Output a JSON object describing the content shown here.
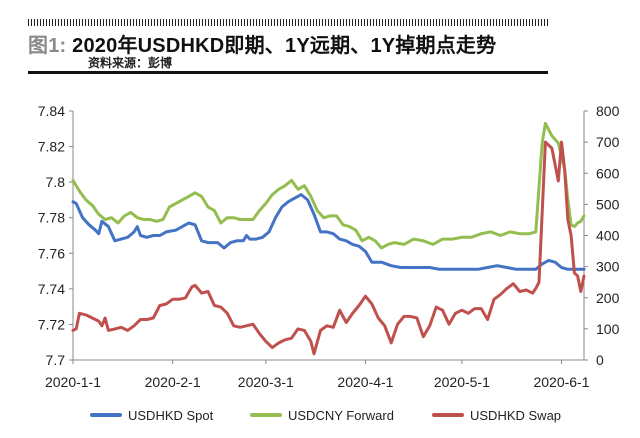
{
  "header": {
    "figure_number": "图1:",
    "title": "2020年USDHKD即期、1Y远期、1Y掉期点走势",
    "source": "资料来源：彭博"
  },
  "colors": {
    "spot": "#4472c4",
    "forward": "#93be4f",
    "swap": "#c0504d",
    "axis": "#888888"
  },
  "legend": [
    {
      "name": "USDHKD Spot"
    },
    {
      "name": "USDCNY Forward"
    },
    {
      "name": "USDHKD Swap"
    }
  ],
  "chart_data": {
    "type": "line",
    "x_ticks": [
      "2020-1-1",
      "2020-2-1",
      "2020-3-1",
      "2020-4-1",
      "2020-5-1",
      "2020-6-1"
    ],
    "x_range": [
      "2020-01-01",
      "2020-06-08"
    ],
    "y_left": {
      "ticks": [
        "7.7",
        "7.72",
        "7.74",
        "7.76",
        "7.78",
        "7.8",
        "7.82",
        "7.84"
      ],
      "range": [
        7.7,
        7.84
      ]
    },
    "y_right": {
      "ticks": [
        "0",
        "100",
        "200",
        "300",
        "400",
        "500",
        "600",
        "700",
        "800"
      ],
      "range": [
        0,
        800
      ]
    },
    "grid": false,
    "legend_position": "bottom",
    "series": [
      {
        "name": "USDHKD Spot",
        "axis": "left",
        "points": [
          [
            "2020-01-01",
            7.789
          ],
          [
            "2020-01-02",
            7.788
          ],
          [
            "2020-01-04",
            7.78
          ],
          [
            "2020-01-06",
            7.776
          ],
          [
            "2020-01-08",
            7.773
          ],
          [
            "2020-01-09",
            7.771
          ],
          [
            "2020-01-10",
            7.778
          ],
          [
            "2020-01-12",
            7.775
          ],
          [
            "2020-01-14",
            7.767
          ],
          [
            "2020-01-16",
            7.768
          ],
          [
            "2020-01-18",
            7.769
          ],
          [
            "2020-01-20",
            7.772
          ],
          [
            "2020-01-21",
            7.775
          ],
          [
            "2020-01-22",
            7.77
          ],
          [
            "2020-01-24",
            7.769
          ],
          [
            "2020-01-26",
            7.77
          ],
          [
            "2020-01-28",
            7.77
          ],
          [
            "2020-01-30",
            7.772
          ],
          [
            "2020-02-02",
            7.773
          ],
          [
            "2020-02-04",
            7.775
          ],
          [
            "2020-02-06",
            7.777
          ],
          [
            "2020-02-08",
            7.776
          ],
          [
            "2020-02-10",
            7.767
          ],
          [
            "2020-02-12",
            7.766
          ],
          [
            "2020-02-15",
            7.766
          ],
          [
            "2020-02-17",
            7.763
          ],
          [
            "2020-02-19",
            7.766
          ],
          [
            "2020-02-21",
            7.767
          ],
          [
            "2020-02-23",
            7.767
          ],
          [
            "2020-02-24",
            7.77
          ],
          [
            "2020-02-25",
            7.768
          ],
          [
            "2020-02-27",
            7.768
          ],
          [
            "2020-02-29",
            7.769
          ],
          [
            "2020-03-02",
            7.772
          ],
          [
            "2020-03-04",
            7.78
          ],
          [
            "2020-03-06",
            7.786
          ],
          [
            "2020-03-08",
            7.789
          ],
          [
            "2020-03-10",
            7.791
          ],
          [
            "2020-03-12",
            7.793
          ],
          [
            "2020-03-14",
            7.79
          ],
          [
            "2020-03-16",
            7.782
          ],
          [
            "2020-03-18",
            7.772
          ],
          [
            "2020-03-20",
            7.772
          ],
          [
            "2020-03-22",
            7.771
          ],
          [
            "2020-03-24",
            7.768
          ],
          [
            "2020-03-26",
            7.767
          ],
          [
            "2020-03-28",
            7.765
          ],
          [
            "2020-03-30",
            7.764
          ],
          [
            "2020-04-01",
            7.761
          ],
          [
            "2020-04-03",
            7.755
          ],
          [
            "2020-04-06",
            7.755
          ],
          [
            "2020-04-09",
            7.753
          ],
          [
            "2020-04-12",
            7.752
          ],
          [
            "2020-04-15",
            7.752
          ],
          [
            "2020-04-18",
            7.752
          ],
          [
            "2020-04-21",
            7.752
          ],
          [
            "2020-04-24",
            7.751
          ],
          [
            "2020-04-27",
            7.751
          ],
          [
            "2020-04-30",
            7.751
          ],
          [
            "2020-05-03",
            7.751
          ],
          [
            "2020-05-06",
            7.751
          ],
          [
            "2020-05-09",
            7.752
          ],
          [
            "2020-05-12",
            7.753
          ],
          [
            "2020-05-15",
            7.752
          ],
          [
            "2020-05-18",
            7.751
          ],
          [
            "2020-05-21",
            7.751
          ],
          [
            "2020-05-24",
            7.751
          ],
          [
            "2020-05-26",
            7.754
          ],
          [
            "2020-05-28",
            7.756
          ],
          [
            "2020-05-30",
            7.755
          ],
          [
            "2020-06-01",
            7.752
          ],
          [
            "2020-06-03",
            7.751
          ],
          [
            "2020-06-05",
            7.751
          ],
          [
            "2020-06-08",
            7.751
          ]
        ]
      },
      {
        "name": "USDCNY Forward",
        "axis": "left",
        "points": [
          [
            "2020-01-01",
            7.801
          ],
          [
            "2020-01-03",
            7.795
          ],
          [
            "2020-01-05",
            7.79
          ],
          [
            "2020-01-07",
            7.787
          ],
          [
            "2020-01-09",
            7.782
          ],
          [
            "2020-01-11",
            7.779
          ],
          [
            "2020-01-13",
            7.78
          ],
          [
            "2020-01-15",
            7.777
          ],
          [
            "2020-01-17",
            7.781
          ],
          [
            "2020-01-19",
            7.783
          ],
          [
            "2020-01-21",
            7.78
          ],
          [
            "2020-01-23",
            7.779
          ],
          [
            "2020-01-25",
            7.779
          ],
          [
            "2020-01-27",
            7.778
          ],
          [
            "2020-01-29",
            7.779
          ],
          [
            "2020-01-31",
            7.786
          ],
          [
            "2020-02-02",
            7.788
          ],
          [
            "2020-02-04",
            7.79
          ],
          [
            "2020-02-06",
            7.792
          ],
          [
            "2020-02-08",
            7.794
          ],
          [
            "2020-02-10",
            7.792
          ],
          [
            "2020-02-12",
            7.786
          ],
          [
            "2020-02-14",
            7.784
          ],
          [
            "2020-02-16",
            7.777
          ],
          [
            "2020-02-18",
            7.78
          ],
          [
            "2020-02-20",
            7.78
          ],
          [
            "2020-02-22",
            7.779
          ],
          [
            "2020-02-24",
            7.779
          ],
          [
            "2020-02-26",
            7.779
          ],
          [
            "2020-02-28",
            7.784
          ],
          [
            "2020-03-01",
            7.788
          ],
          [
            "2020-03-03",
            7.793
          ],
          [
            "2020-03-05",
            7.796
          ],
          [
            "2020-03-07",
            7.798
          ],
          [
            "2020-03-09",
            7.801
          ],
          [
            "2020-03-11",
            7.796
          ],
          [
            "2020-03-13",
            7.798
          ],
          [
            "2020-03-15",
            7.792
          ],
          [
            "2020-03-17",
            7.784
          ],
          [
            "2020-03-19",
            7.78
          ],
          [
            "2020-03-21",
            7.781
          ],
          [
            "2020-03-23",
            7.781
          ],
          [
            "2020-03-25",
            7.776
          ],
          [
            "2020-03-27",
            7.775
          ],
          [
            "2020-03-29",
            7.773
          ],
          [
            "2020-03-31",
            7.767
          ],
          [
            "2020-04-02",
            7.769
          ],
          [
            "2020-04-04",
            7.767
          ],
          [
            "2020-04-06",
            7.763
          ],
          [
            "2020-04-08",
            7.765
          ],
          [
            "2020-04-10",
            7.766
          ],
          [
            "2020-04-13",
            7.765
          ],
          [
            "2020-04-16",
            7.768
          ],
          [
            "2020-04-19",
            7.767
          ],
          [
            "2020-04-22",
            7.765
          ],
          [
            "2020-04-25",
            7.768
          ],
          [
            "2020-04-28",
            7.768
          ],
          [
            "2020-05-01",
            7.769
          ],
          [
            "2020-05-04",
            7.769
          ],
          [
            "2020-05-07",
            7.771
          ],
          [
            "2020-05-10",
            7.772
          ],
          [
            "2020-05-13",
            7.77
          ],
          [
            "2020-05-16",
            7.772
          ],
          [
            "2020-05-19",
            7.771
          ],
          [
            "2020-05-22",
            7.771
          ],
          [
            "2020-05-24",
            7.772
          ],
          [
            "2020-05-26",
            7.822
          ],
          [
            "2020-05-27",
            7.833
          ],
          [
            "2020-05-29",
            7.826
          ],
          [
            "2020-05-31",
            7.822
          ],
          [
            "2020-06-01",
            7.815
          ],
          [
            "2020-06-02",
            7.807
          ],
          [
            "2020-06-03",
            7.79
          ],
          [
            "2020-06-04",
            7.776
          ],
          [
            "2020-06-05",
            7.775
          ],
          [
            "2020-06-06",
            7.777
          ],
          [
            "2020-06-07",
            7.778
          ],
          [
            "2020-06-08",
            7.781
          ]
        ]
      },
      {
        "name": "USDHKD Swap",
        "axis": "right",
        "points": [
          [
            "2020-01-01",
            95
          ],
          [
            "2020-01-02",
            100
          ],
          [
            "2020-01-03",
            150
          ],
          [
            "2020-01-05",
            145
          ],
          [
            "2020-01-07",
            135
          ],
          [
            "2020-01-09",
            125
          ],
          [
            "2020-01-10",
            110
          ],
          [
            "2020-01-11",
            135
          ],
          [
            "2020-01-12",
            95
          ],
          [
            "2020-01-14",
            100
          ],
          [
            "2020-01-16",
            105
          ],
          [
            "2020-01-18",
            95
          ],
          [
            "2020-01-20",
            110
          ],
          [
            "2020-01-22",
            130
          ],
          [
            "2020-01-24",
            130
          ],
          [
            "2020-01-26",
            135
          ],
          [
            "2020-01-28",
            175
          ],
          [
            "2020-01-30",
            180
          ],
          [
            "2020-02-01",
            195
          ],
          [
            "2020-02-03",
            195
          ],
          [
            "2020-02-05",
            200
          ],
          [
            "2020-02-07",
            235
          ],
          [
            "2020-02-08",
            240
          ],
          [
            "2020-02-10",
            215
          ],
          [
            "2020-02-12",
            220
          ],
          [
            "2020-02-14",
            175
          ],
          [
            "2020-02-16",
            170
          ],
          [
            "2020-02-18",
            150
          ],
          [
            "2020-02-20",
            110
          ],
          [
            "2020-02-22",
            105
          ],
          [
            "2020-02-24",
            110
          ],
          [
            "2020-02-26",
            115
          ],
          [
            "2020-02-28",
            85
          ],
          [
            "2020-03-01",
            60
          ],
          [
            "2020-03-03",
            40
          ],
          [
            "2020-03-05",
            55
          ],
          [
            "2020-03-07",
            65
          ],
          [
            "2020-03-09",
            70
          ],
          [
            "2020-03-11",
            100
          ],
          [
            "2020-03-13",
            95
          ],
          [
            "2020-03-15",
            60
          ],
          [
            "2020-03-16",
            20
          ],
          [
            "2020-03-18",
            95
          ],
          [
            "2020-03-20",
            110
          ],
          [
            "2020-03-22",
            105
          ],
          [
            "2020-03-24",
            160
          ],
          [
            "2020-03-26",
            120
          ],
          [
            "2020-03-28",
            150
          ],
          [
            "2020-03-30",
            175
          ],
          [
            "2020-04-01",
            205
          ],
          [
            "2020-04-03",
            180
          ],
          [
            "2020-04-05",
            135
          ],
          [
            "2020-04-07",
            110
          ],
          [
            "2020-04-09",
            55
          ],
          [
            "2020-04-11",
            115
          ],
          [
            "2020-04-13",
            140
          ],
          [
            "2020-04-15",
            140
          ],
          [
            "2020-04-17",
            135
          ],
          [
            "2020-04-19",
            75
          ],
          [
            "2020-04-21",
            110
          ],
          [
            "2020-04-23",
            170
          ],
          [
            "2020-04-25",
            160
          ],
          [
            "2020-04-27",
            115
          ],
          [
            "2020-04-29",
            150
          ],
          [
            "2020-05-01",
            160
          ],
          [
            "2020-05-03",
            150
          ],
          [
            "2020-05-05",
            165
          ],
          [
            "2020-05-07",
            165
          ],
          [
            "2020-05-09",
            130
          ],
          [
            "2020-05-11",
            195
          ],
          [
            "2020-05-13",
            210
          ],
          [
            "2020-05-15",
            230
          ],
          [
            "2020-05-17",
            245
          ],
          [
            "2020-05-19",
            220
          ],
          [
            "2020-05-21",
            225
          ],
          [
            "2020-05-23",
            215
          ],
          [
            "2020-05-24",
            230
          ],
          [
            "2020-05-25",
            250
          ],
          [
            "2020-05-27",
            700
          ],
          [
            "2020-05-29",
            680
          ],
          [
            "2020-05-31",
            575
          ],
          [
            "2020-06-01",
            700
          ],
          [
            "2020-06-02",
            610
          ],
          [
            "2020-06-03",
            450
          ],
          [
            "2020-06-04",
            400
          ],
          [
            "2020-06-05",
            280
          ],
          [
            "2020-06-06",
            270
          ],
          [
            "2020-06-07",
            220
          ],
          [
            "2020-06-08",
            270
          ]
        ]
      }
    ]
  }
}
